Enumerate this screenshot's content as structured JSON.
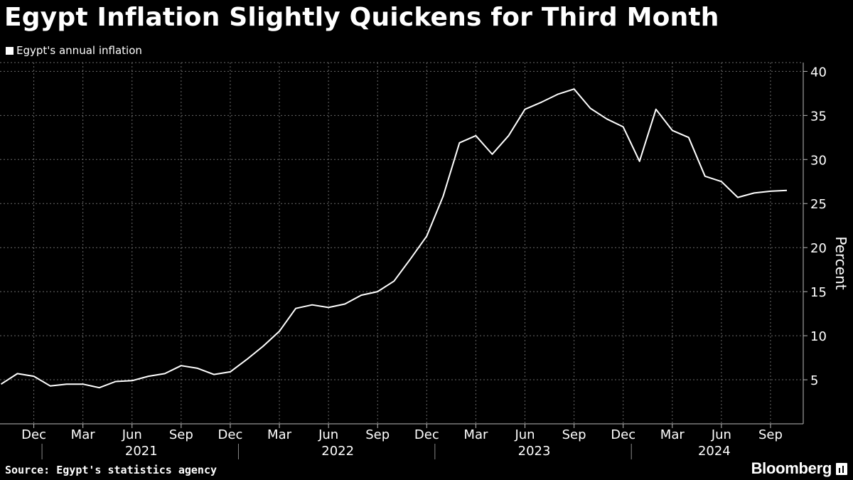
{
  "title": "Egypt Inflation Slightly Quickens for Third Month",
  "source": "Source: Egypt's statistics agency",
  "brand": "Bloomberg",
  "chart_data": {
    "type": "line",
    "title": "Egypt Inflation Slightly Quickens for Third Month",
    "ylabel": "Percent",
    "xlabel": "",
    "ylim": [
      0,
      41
    ],
    "y_ticks": [
      5,
      10,
      15,
      20,
      25,
      30,
      35,
      40
    ],
    "grid": true,
    "legend_position": "top-left",
    "x_month_ticks": [
      {
        "label": "Dec",
        "date": "2020-12"
      },
      {
        "label": "Mar",
        "date": "2021-03"
      },
      {
        "label": "Jun",
        "date": "2021-06"
      },
      {
        "label": "Sep",
        "date": "2021-09"
      },
      {
        "label": "Dec",
        "date": "2021-12"
      },
      {
        "label": "Mar",
        "date": "2022-03"
      },
      {
        "label": "Jun",
        "date": "2022-06"
      },
      {
        "label": "Sep",
        "date": "2022-09"
      },
      {
        "label": "Dec",
        "date": "2022-12"
      },
      {
        "label": "Mar",
        "date": "2023-03"
      },
      {
        "label": "Jun",
        "date": "2023-06"
      },
      {
        "label": "Sep",
        "date": "2023-09"
      },
      {
        "label": "Dec",
        "date": "2023-12"
      },
      {
        "label": "Mar",
        "date": "2024-03"
      },
      {
        "label": "Jun",
        "date": "2024-06"
      },
      {
        "label": "Sep",
        "date": "2024-09"
      }
    ],
    "x_year_labels": [
      "2021",
      "2022",
      "2023",
      "2024"
    ],
    "series": [
      {
        "name": "Egypt's annual inflation",
        "color": "#ffffff",
        "x": [
          "2020-10",
          "2020-11",
          "2020-12",
          "2021-01",
          "2021-02",
          "2021-03",
          "2021-04",
          "2021-05",
          "2021-06",
          "2021-07",
          "2021-08",
          "2021-09",
          "2021-10",
          "2021-11",
          "2021-12",
          "2022-01",
          "2022-02",
          "2022-03",
          "2022-04",
          "2022-05",
          "2022-06",
          "2022-07",
          "2022-08",
          "2022-09",
          "2022-10",
          "2022-11",
          "2022-12",
          "2023-01",
          "2023-02",
          "2023-03",
          "2023-04",
          "2023-05",
          "2023-06",
          "2023-07",
          "2023-08",
          "2023-09",
          "2023-10",
          "2023-11",
          "2023-12",
          "2024-01",
          "2024-02",
          "2024-03",
          "2024-04",
          "2024-05",
          "2024-06",
          "2024-07",
          "2024-08",
          "2024-09",
          "2024-10"
        ],
        "values": [
          4.5,
          5.7,
          5.4,
          4.3,
          4.5,
          4.5,
          4.1,
          4.8,
          4.9,
          5.4,
          5.7,
          6.6,
          6.3,
          5.6,
          5.9,
          7.3,
          8.8,
          10.5,
          13.1,
          13.5,
          13.2,
          13.6,
          14.6,
          15.0,
          16.2,
          18.7,
          21.3,
          25.8,
          31.9,
          32.7,
          30.6,
          32.7,
          35.7,
          36.5,
          37.4,
          38.0,
          35.8,
          34.6,
          33.7,
          29.8,
          35.7,
          33.3,
          32.5,
          28.1,
          27.5,
          25.7,
          26.2,
          26.4,
          26.5
        ]
      }
    ]
  }
}
